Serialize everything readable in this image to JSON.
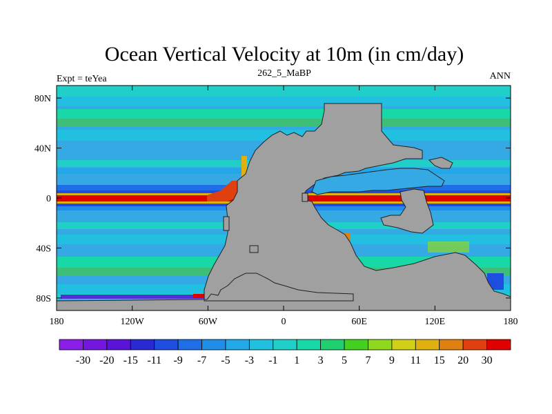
{
  "chart_data": {
    "type": "heatmap",
    "title": "Ocean Vertical Velocity at 10m (in cm/day)",
    "left_string": "Expt = teYea",
    "center_string": "262_5_MaBP",
    "right_string": "ANN",
    "xlim": [
      -180,
      180
    ],
    "ylim": [
      -90,
      90
    ],
    "x_ticks": [
      {
        "value": -180,
        "label": "180"
      },
      {
        "value": -120,
        "label": "120W"
      },
      {
        "value": -60,
        "label": "60W"
      },
      {
        "value": 0,
        "label": "0"
      },
      {
        "value": 60,
        "label": "60E"
      },
      {
        "value": 120,
        "label": "120E"
      },
      {
        "value": 180,
        "label": "180"
      }
    ],
    "y_ticks": [
      {
        "value": 80,
        "label": "80N"
      },
      {
        "value": 40,
        "label": "40N"
      },
      {
        "value": 0,
        "label": "0"
      },
      {
        "value": -40,
        "label": "40S"
      },
      {
        "value": -80,
        "label": "80S"
      }
    ],
    "colorbar": {
      "levels": [
        "-30",
        "-20",
        "-15",
        "-11",
        "-9",
        "-7",
        "-5",
        "-3",
        "-1",
        "1",
        "3",
        "5",
        "7",
        "9",
        "11",
        "15",
        "20",
        "30"
      ],
      "colors": [
        "#8a1ee6",
        "#7216e0",
        "#5a14d8",
        "#2a2ad2",
        "#1e4ee0",
        "#1e6ee8",
        "#1e8ee8",
        "#22a8e8",
        "#22c0e0",
        "#20d0c8",
        "#18d8a8",
        "#20d070",
        "#44d020",
        "#90d820",
        "#d0d018",
        "#e0b010",
        "#e08010",
        "#e04010",
        "#e00000"
      ]
    },
    "ocean_base_color": "#35a9e4",
    "land_color": "#a0a0a0",
    "equatorial_core_color": "#e00000",
    "features": [
      "Strong positive upwelling band along the equator (red core, ~+20 to +30)",
      "Negative downwelling bands just off the equator (~-9 to -15)",
      "Positive coastal upwelling along western margins of Pangaea",
      "Green positive belts near 60N and 50S"
    ]
  }
}
